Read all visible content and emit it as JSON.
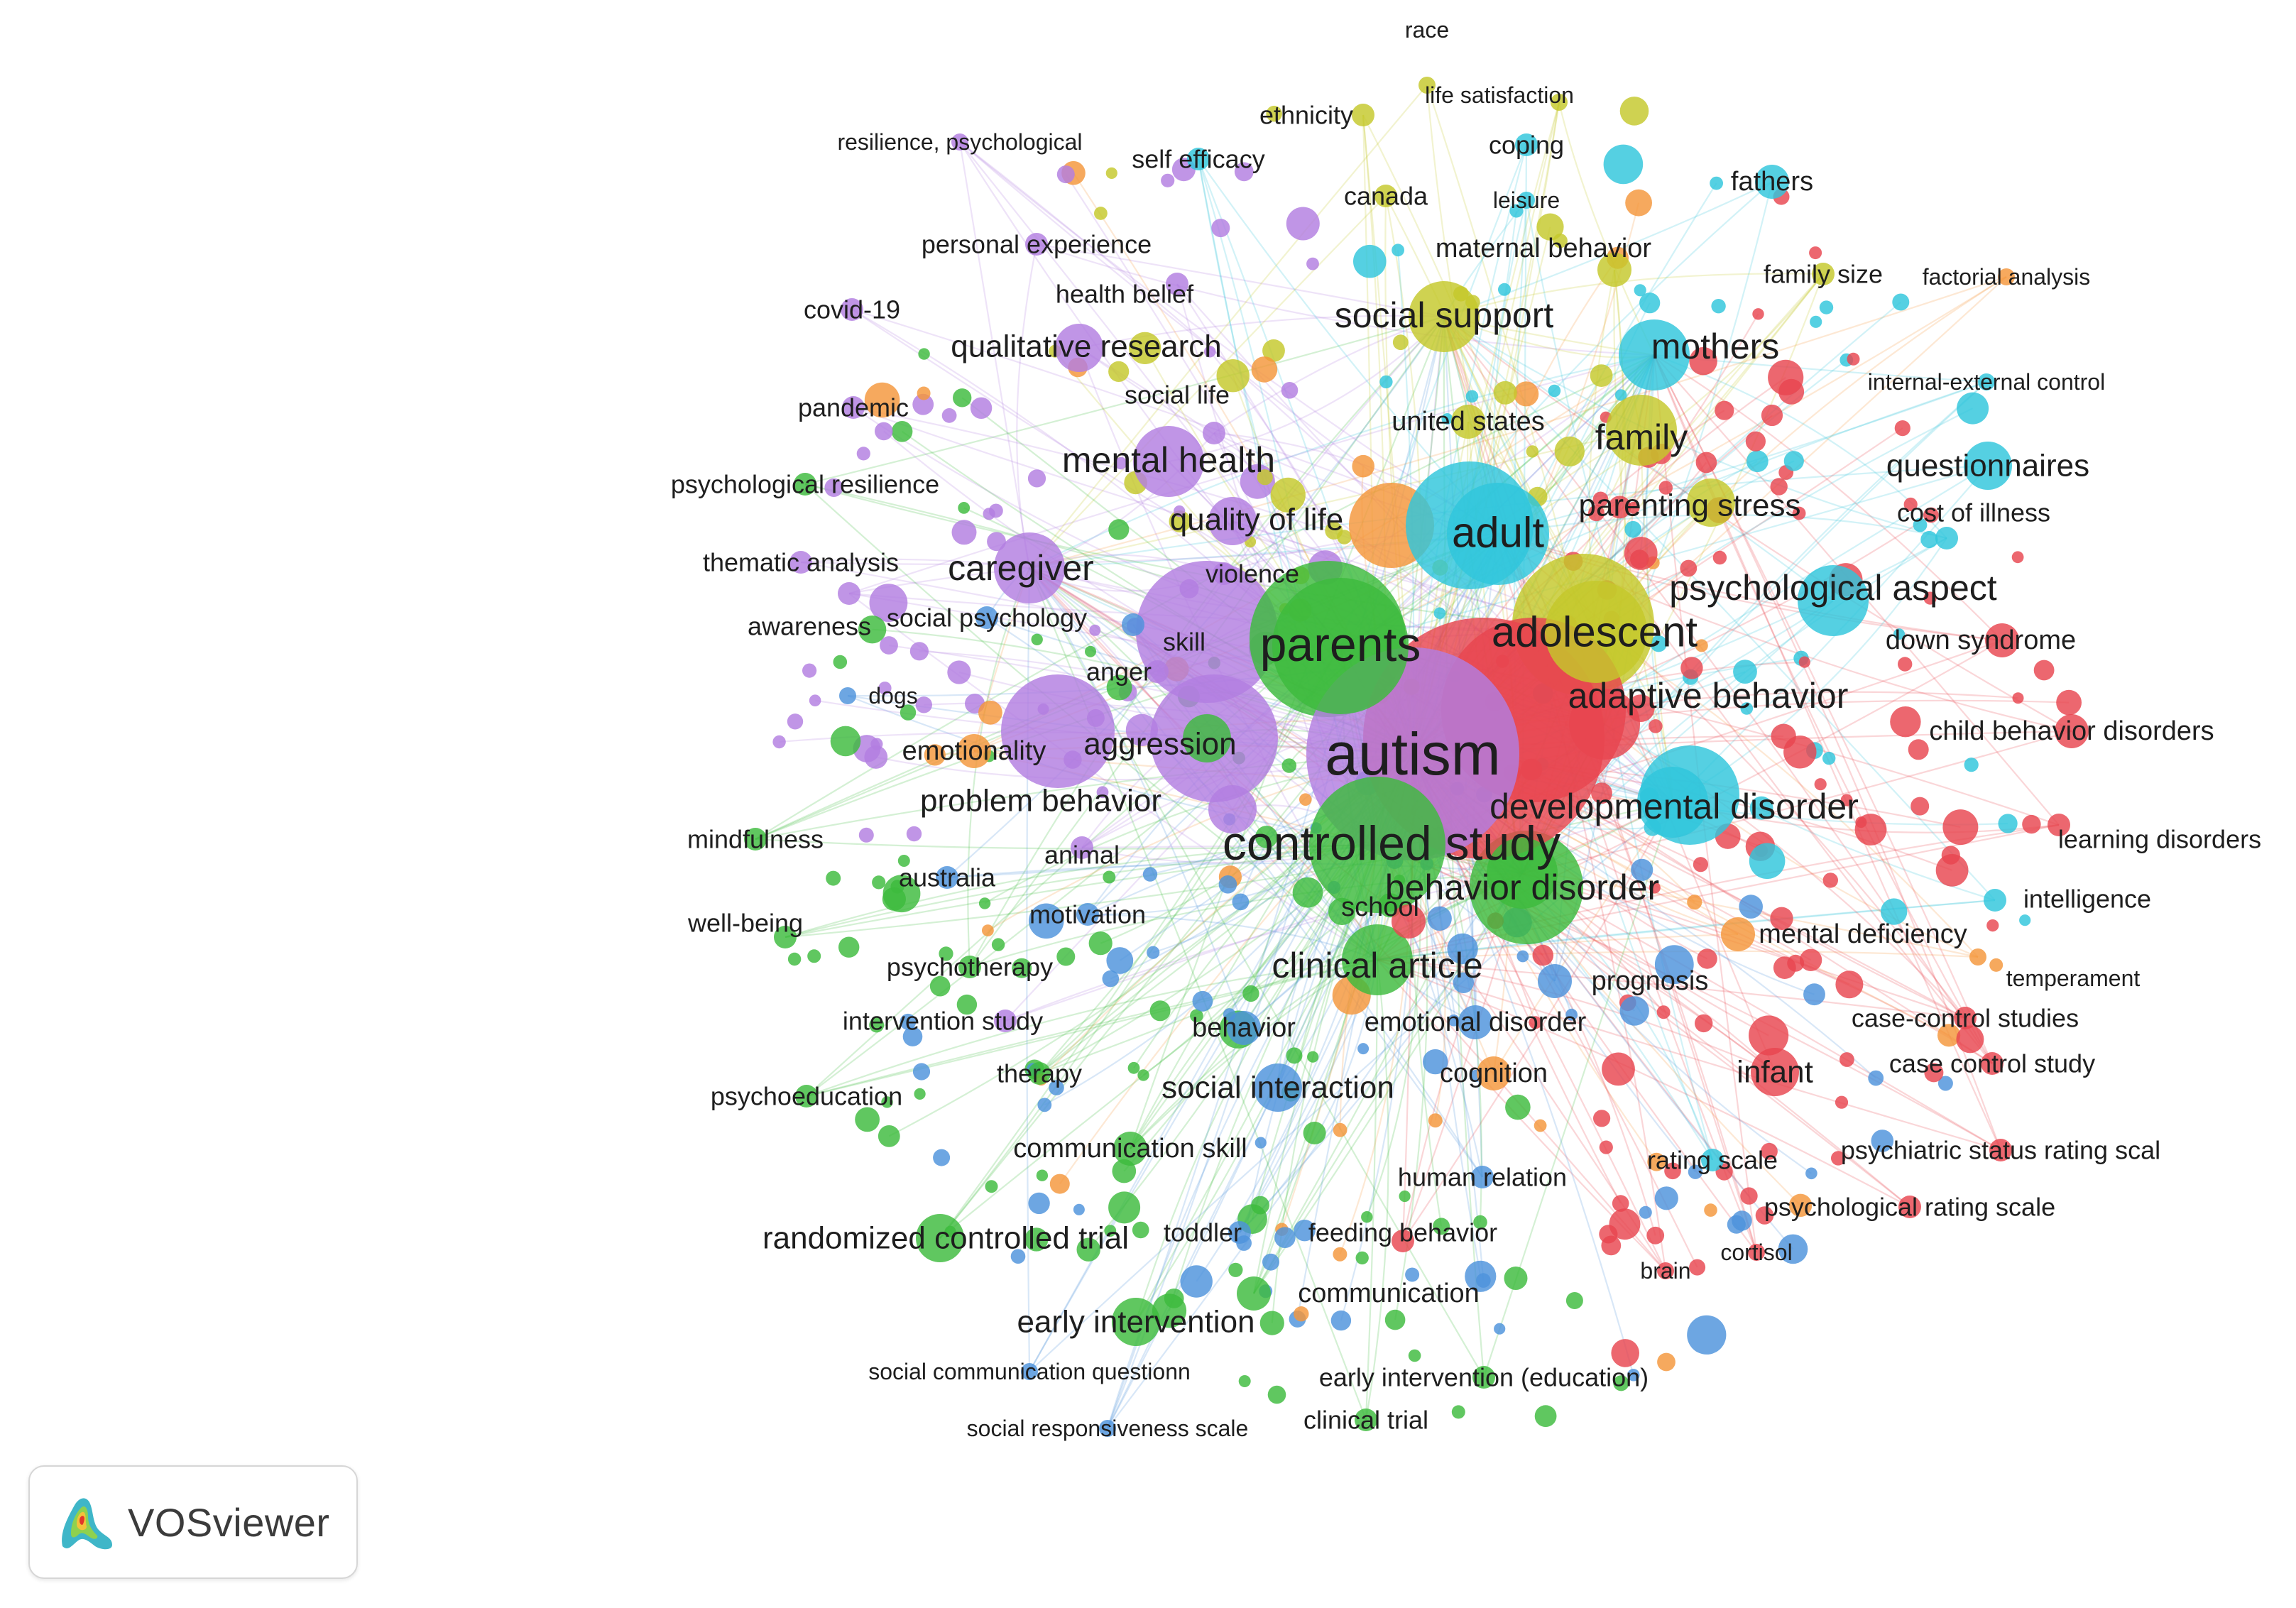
{
  "app": "VOSviewer",
  "logo_text": "VOSviewer",
  "colors": {
    "red": "#e8454f",
    "green": "#3dbb3d",
    "blue": "#4d93dc",
    "yellow": "#c4c82b",
    "purple": "#b27ee0",
    "cyan": "#30c6dc",
    "orange": "#f4963a"
  },
  "nodes": [
    {
      "label": "autism",
      "c": "purple",
      "s": 10
    },
    {
      "label": "controlled study",
      "c": "green",
      "s": 8
    },
    {
      "label": "parents",
      "c": "green",
      "s": 8
    },
    {
      "label": "adolescent",
      "c": "yellow",
      "s": 7
    },
    {
      "label": "adult",
      "c": "cyan",
      "s": 7
    },
    {
      "label": "adaptive behavior",
      "c": "red",
      "s": 6
    },
    {
      "label": "clinical article",
      "c": "green",
      "s": 6
    },
    {
      "label": "behavior disorder",
      "c": "green",
      "s": 6
    },
    {
      "label": "developmental disorder",
      "c": "cyan",
      "s": 6
    },
    {
      "label": "social support",
      "c": "yellow",
      "s": 6
    },
    {
      "label": "mothers",
      "c": "cyan",
      "s": 6
    },
    {
      "label": "family",
      "c": "yellow",
      "s": 6
    },
    {
      "label": "mental health",
      "c": "purple",
      "s": 6
    },
    {
      "label": "caregiver",
      "c": "purple",
      "s": 6
    },
    {
      "label": "psychological aspect",
      "c": "cyan",
      "s": 6
    },
    {
      "label": "questionnaires",
      "c": "cyan",
      "s": 5
    },
    {
      "label": "quality of life",
      "c": "purple",
      "s": 5
    },
    {
      "label": "parenting stress",
      "c": "yellow",
      "s": 5
    },
    {
      "label": "problem behavior",
      "c": "purple",
      "s": 5
    },
    {
      "label": "aggression",
      "c": "green",
      "s": 5
    },
    {
      "label": "social interaction",
      "c": "blue",
      "s": 5
    },
    {
      "label": "randomized controlled trial",
      "c": "green",
      "s": 5
    },
    {
      "label": "early intervention",
      "c": "green",
      "s": 5
    },
    {
      "label": "qualitative research",
      "c": "purple",
      "s": 5
    },
    {
      "label": "infant",
      "c": "red",
      "s": 5
    },
    {
      "label": "child behavior disorders",
      "c": "red",
      "s": 4
    },
    {
      "label": "down syndrome",
      "c": "red",
      "s": 4
    },
    {
      "label": "emotionality",
      "c": "orange",
      "s": 4
    },
    {
      "label": "communication skill",
      "c": "green",
      "s": 4
    },
    {
      "label": "united states",
      "c": "yellow",
      "s": 4
    },
    {
      "label": "maternal behavior",
      "c": "yellow",
      "s": 4
    },
    {
      "label": "fathers",
      "c": "cyan",
      "s": 4
    },
    {
      "label": "family size",
      "c": "yellow",
      "s": 3
    },
    {
      "label": "cognition",
      "c": "orange",
      "s": 4
    },
    {
      "label": "behavior",
      "c": "blue",
      "s": 4
    },
    {
      "label": "emotional disorder",
      "c": "blue",
      "s": 4
    },
    {
      "label": "mental deficiency",
      "c": "orange",
      "s": 4
    },
    {
      "label": "rating scale",
      "c": "cyan",
      "s": 3
    },
    {
      "label": "human relation",
      "c": "blue",
      "s": 3
    },
    {
      "label": "communication",
      "c": "green",
      "s": 4
    },
    {
      "label": "psychotherapy",
      "c": "green",
      "s": 3
    },
    {
      "label": "intervention study",
      "c": "purple",
      "s": 3
    },
    {
      "label": "psychoeducation",
      "c": "green",
      "s": 3
    },
    {
      "label": "therapy",
      "c": "green",
      "s": 3
    },
    {
      "label": "motivation",
      "c": "blue",
      "s": 3
    },
    {
      "label": "australia",
      "c": "blue",
      "s": 3
    },
    {
      "label": "well-being",
      "c": "green",
      "s": 3
    },
    {
      "label": "mindfulness",
      "c": "green",
      "s": 3
    },
    {
      "label": "dogs",
      "c": "blue",
      "s": 2
    },
    {
      "label": "awareness",
      "c": "purple",
      "s": 3
    },
    {
      "label": "social psychology",
      "c": "blue",
      "s": 3
    },
    {
      "label": "thematic analysis",
      "c": "purple",
      "s": 3
    },
    {
      "label": "psychological resilience",
      "c": "green",
      "s": 3
    },
    {
      "label": "pandemic",
      "c": "purple",
      "s": 3
    },
    {
      "label": "covid-19",
      "c": "purple",
      "s": 3
    },
    {
      "label": "personal experience",
      "c": "purple",
      "s": 3
    },
    {
      "label": "resilience, psychological",
      "c": "purple",
      "s": 2
    },
    {
      "label": "health belief",
      "c": "purple",
      "s": 3
    },
    {
      "label": "social life",
      "c": "purple",
      "s": 3
    },
    {
      "label": "self efficacy",
      "c": "cyan",
      "s": 3
    },
    {
      "label": "ethnicity",
      "c": "yellow",
      "s": 3
    },
    {
      "label": "race",
      "c": "yellow",
      "s": 2
    },
    {
      "label": "life satisfaction",
      "c": "yellow",
      "s": 2
    },
    {
      "label": "coping",
      "c": "cyan",
      "s": 3
    },
    {
      "label": "canada",
      "c": "yellow",
      "s": 3
    },
    {
      "label": "leisure",
      "c": "cyan",
      "s": 2
    },
    {
      "label": "factorial analysis",
      "c": "orange",
      "s": 2
    },
    {
      "label": "internal-external control",
      "c": "cyan",
      "s": 2
    },
    {
      "label": "cost of illness",
      "c": "cyan",
      "s": 3
    },
    {
      "label": "learning disorders",
      "c": "red",
      "s": 3
    },
    {
      "label": "intelligence",
      "c": "cyan",
      "s": 3
    },
    {
      "label": "temperament",
      "c": "orange",
      "s": 2
    },
    {
      "label": "case-control studies",
      "c": "red",
      "s": 3
    },
    {
      "label": "case control study",
      "c": "red",
      "s": 3
    },
    {
      "label": "psychiatric status rating scal",
      "c": "red",
      "s": 3
    },
    {
      "label": "psychological rating scale",
      "c": "red",
      "s": 3
    },
    {
      "label": "cortisol",
      "c": "red",
      "s": 2
    },
    {
      "label": "brain",
      "c": "red",
      "s": 2
    },
    {
      "label": "prognosis",
      "c": "blue",
      "s": 4
    },
    {
      "label": "school",
      "c": "red",
      "s": 4
    },
    {
      "label": "violence",
      "c": "purple",
      "s": 3
    },
    {
      "label": "skill",
      "c": "blue",
      "s": 3
    },
    {
      "label": "anger",
      "c": "purple",
      "s": 3
    },
    {
      "label": "animal",
      "c": "purple",
      "s": 3
    },
    {
      "label": "toddler",
      "c": "blue",
      "s": 3
    },
    {
      "label": "feeding behavior",
      "c": "red",
      "s": 3
    },
    {
      "label": "social communication questionn",
      "c": "blue",
      "s": 2
    },
    {
      "label": "social responsiveness scale",
      "c": "blue",
      "s": 2
    },
    {
      "label": "early intervention (education)",
      "c": "green",
      "s": 3
    },
    {
      "label": "clinical trial",
      "c": "green",
      "s": 3
    }
  ]
}
